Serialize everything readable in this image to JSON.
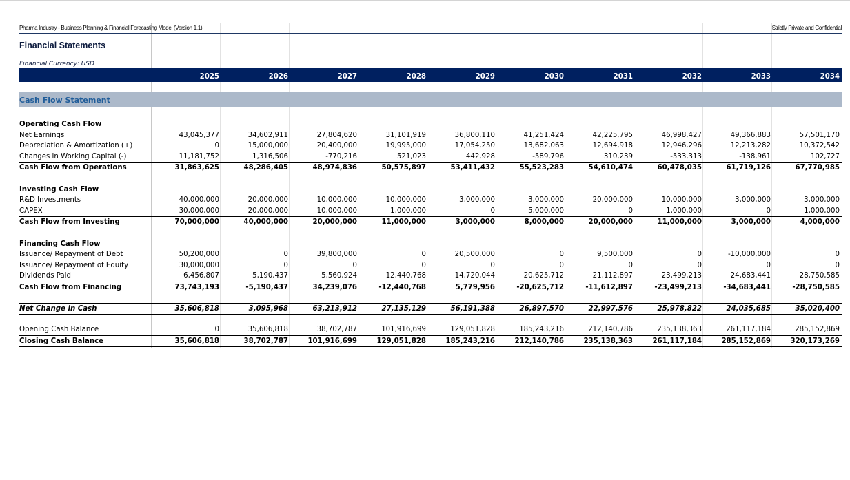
{
  "header": {
    "model_title": "Pharma Industry - Business Planning & Financial Forecasting Model (Version 1.1)",
    "confidential": "Strictly Private and Confidential"
  },
  "title": "Financial Statements",
  "currency": "Financial Currency: USD",
  "years": [
    "2025",
    "2026",
    "2027",
    "2028",
    "2029",
    "2030",
    "2031",
    "2032",
    "2033",
    "2034"
  ],
  "section": "Cash Flow Statement",
  "operating": {
    "heading": "Operating Cash Flow",
    "net_earnings": {
      "label": "Net Earnings",
      "values": [
        "43,045,377",
        "34,602,911",
        "27,804,620",
        "31,101,919",
        "36,800,110",
        "41,251,424",
        "42,225,795",
        "46,998,427",
        "49,366,883",
        "57,501,170"
      ]
    },
    "depreciation": {
      "label": "Depreciation & Amortization (+)",
      "values": [
        "0",
        "15,000,000",
        "20,400,000",
        "19,995,000",
        "17,054,250",
        "13,682,063",
        "12,694,918",
        "12,946,296",
        "12,213,282",
        "10,372,542"
      ]
    },
    "working_capital": {
      "label": "Changes in Working Capital (-)",
      "values": [
        "11,181,752",
        "1,316,506",
        "-770,216",
        "521,023",
        "442,928",
        "-589,796",
        "310,239",
        "-533,313",
        "-138,961",
        "102,727"
      ]
    },
    "total": {
      "label": "Cash Flow from Operations",
      "values": [
        "31,863,625",
        "48,286,405",
        "48,974,836",
        "50,575,897",
        "53,411,432",
        "55,523,283",
        "54,610,474",
        "60,478,035",
        "61,719,126",
        "67,770,985"
      ]
    }
  },
  "investing": {
    "heading": "Investing Cash Flow",
    "rd": {
      "label": "R&D Investments",
      "values": [
        "40,000,000",
        "20,000,000",
        "10,000,000",
        "10,000,000",
        "3,000,000",
        "3,000,000",
        "20,000,000",
        "10,000,000",
        "3,000,000",
        "3,000,000"
      ]
    },
    "capex": {
      "label": "CAPEX",
      "values": [
        "30,000,000",
        "20,000,000",
        "10,000,000",
        "1,000,000",
        "0",
        "5,000,000",
        "0",
        "1,000,000",
        "0",
        "1,000,000"
      ]
    },
    "total": {
      "label": "Cash Flow from Investing",
      "values": [
        "70,000,000",
        "40,000,000",
        "20,000,000",
        "11,000,000",
        "3,000,000",
        "8,000,000",
        "20,000,000",
        "11,000,000",
        "3,000,000",
        "4,000,000"
      ]
    }
  },
  "financing": {
    "heading": "Financing Cash Flow",
    "debt": {
      "label": "Issuance/ Repayment of Debt",
      "values": [
        "50,200,000",
        "0",
        "39,800,000",
        "0",
        "20,500,000",
        "0",
        "9,500,000",
        "0",
        "-10,000,000",
        "0"
      ]
    },
    "equity": {
      "label": "Issuance/ Repayment of Equity",
      "values": [
        "30,000,000",
        "0",
        "0",
        "0",
        "0",
        "0",
        "0",
        "0",
        "0",
        "0"
      ]
    },
    "dividends": {
      "label": "Dividends Paid",
      "values": [
        "6,456,807",
        "5,190,437",
        "5,560,924",
        "12,440,768",
        "14,720,044",
        "20,625,712",
        "21,112,897",
        "23,499,213",
        "24,683,441",
        "28,750,585"
      ]
    },
    "total": {
      "label": "Cash Flow from Financing",
      "values": [
        "73,743,193",
        "-5,190,437",
        "34,239,076",
        "-12,440,768",
        "5,779,956",
        "-20,625,712",
        "-11,612,897",
        "-23,499,213",
        "-34,683,441",
        "-28,750,585"
      ]
    }
  },
  "net_change": {
    "label": "Net Change in Cash",
    "values": [
      "35,606,818",
      "3,095,968",
      "63,213,912",
      "27,135,129",
      "56,191,388",
      "26,897,570",
      "22,997,576",
      "25,978,822",
      "24,035,685",
      "35,020,400"
    ]
  },
  "opening": {
    "label": "Opening Cash Balance",
    "values": [
      "0",
      "35,606,818",
      "38,702,787",
      "101,916,699",
      "129,051,828",
      "185,243,216",
      "212,140,786",
      "235,138,363",
      "261,117,184",
      "285,152,869"
    ]
  },
  "closing": {
    "label": "Closing Cash Balance",
    "values": [
      "35,606,818",
      "38,702,787",
      "101,916,699",
      "129,051,828",
      "185,243,216",
      "212,140,786",
      "235,138,363",
      "261,117,184",
      "285,152,869",
      "320,173,269"
    ]
  }
}
